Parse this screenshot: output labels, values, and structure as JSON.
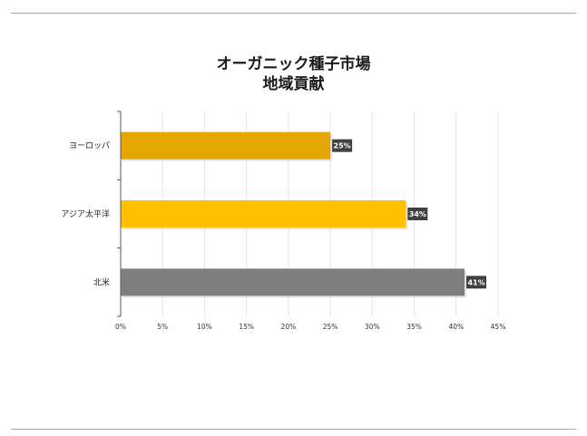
{
  "chart_data": {
    "type": "bar",
    "orientation": "horizontal",
    "title": "オーガニック種子市場",
    "subtitle": "地域貢献",
    "categories": [
      "ヨーロッパ",
      "アジア太平洋",
      "北米"
    ],
    "values": [
      25,
      34,
      41
    ],
    "data_labels": [
      "25%",
      "34%",
      "41%"
    ],
    "colors": [
      "#E3A700",
      "#FFC000",
      "#7F7F7F"
    ],
    "xlim": [
      0,
      45
    ],
    "x_ticks": [
      0,
      5,
      10,
      15,
      20,
      25,
      30,
      35,
      40,
      45
    ],
    "x_tick_labels": [
      "0%",
      "5%",
      "10%",
      "15%",
      "20%",
      "25%",
      "30%",
      "35%",
      "40%",
      "45%"
    ],
    "grid": true,
    "legend": "none"
  }
}
